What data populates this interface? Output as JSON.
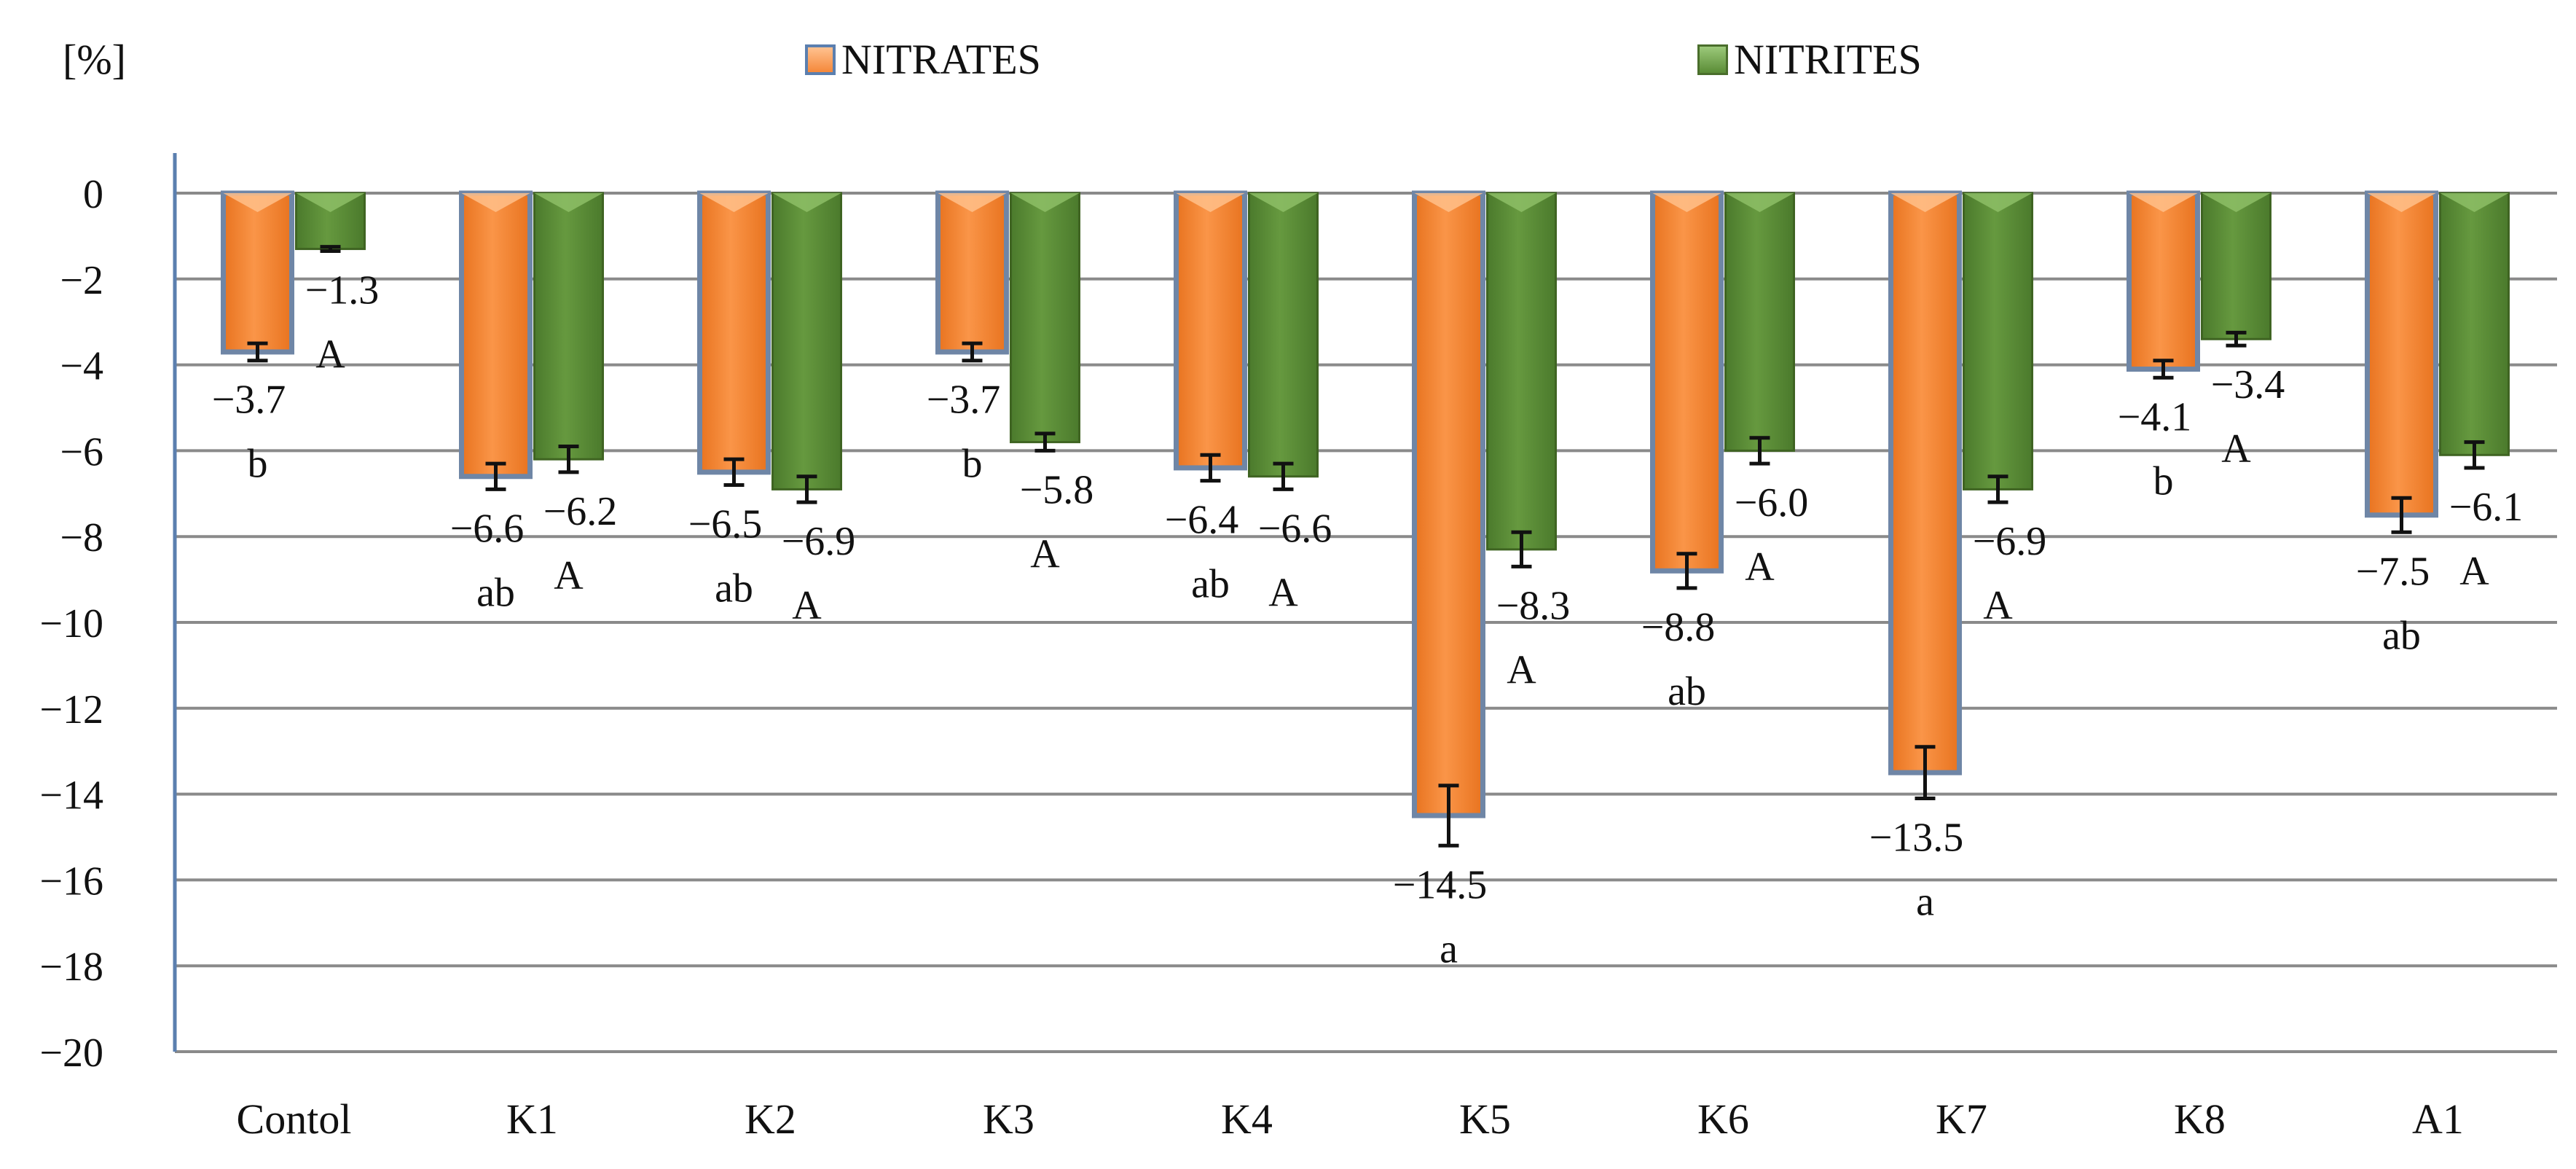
{
  "chart_data": {
    "type": "bar",
    "ylabel": "[%]",
    "ylim": [
      -20,
      0
    ],
    "yticks": [
      0,
      -2,
      -4,
      -6,
      -8,
      -10,
      -12,
      -14,
      -16,
      -18,
      -20
    ],
    "ytick_labels": [
      "0",
      "−2",
      "−4",
      "−6",
      "−8",
      "−10",
      "−12",
      "−14",
      "−16",
      "−18",
      "−20"
    ],
    "grid": true,
    "legend_position": "top",
    "categories": [
      "Contol",
      "K1",
      "K2",
      "K3",
      "K4",
      "K5",
      "K6",
      "K7",
      "K8",
      "A1"
    ],
    "series": [
      {
        "name": "NITRATES",
        "color": "#F5883A",
        "values": [
          -3.7,
          -6.6,
          -6.5,
          -3.7,
          -6.4,
          -14.5,
          -8.8,
          -13.5,
          -4.1,
          -7.5
        ],
        "value_labels": [
          "−3.7",
          "−6.6",
          "−6.5",
          "−3.7",
          "−6.4",
          "−14.5",
          "−8.8",
          "−13.5",
          "−4.1",
          "−7.5"
        ],
        "errors": [
          0.2,
          0.3,
          0.3,
          0.2,
          0.3,
          0.7,
          0.4,
          0.6,
          0.2,
          0.4
        ],
        "letters": [
          "b",
          "ab",
          "ab",
          "b",
          "ab",
          "a",
          "ab",
          "a",
          "b",
          "ab"
        ]
      },
      {
        "name": "NITRITES",
        "color": "#5A8C36",
        "values": [
          -1.3,
          -6.2,
          -6.9,
          -5.8,
          -6.6,
          -8.3,
          -6.0,
          -6.9,
          -3.4,
          -6.1
        ],
        "value_labels": [
          "−1.3",
          "−6.2",
          "−6.9",
          "−5.8",
          "−6.6",
          "−8.3",
          "−6.0",
          "−6.9",
          "−3.4",
          "−6.1"
        ],
        "errors": [
          0.05,
          0.3,
          0.3,
          0.2,
          0.3,
          0.4,
          0.3,
          0.3,
          0.15,
          0.3
        ],
        "letters": [
          "A",
          "A",
          "A",
          "A",
          "A",
          "A",
          "A",
          "A",
          "A",
          "A"
        ]
      }
    ]
  }
}
